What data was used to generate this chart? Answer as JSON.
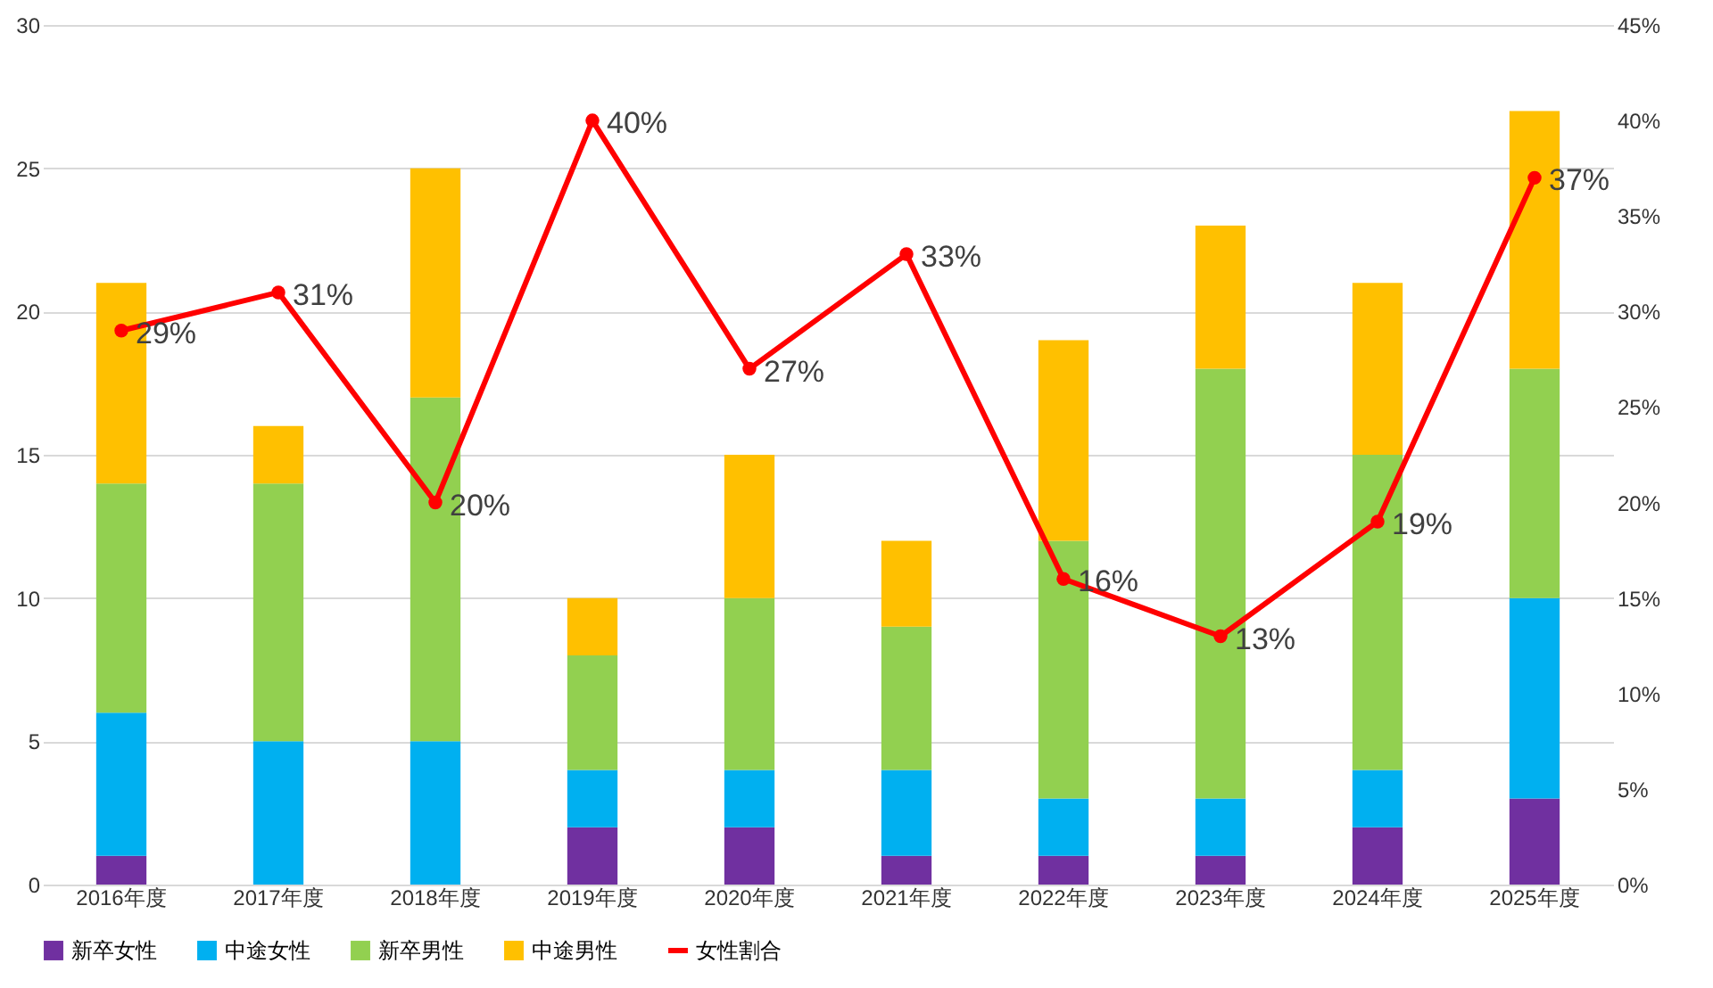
{
  "chart_data": {
    "type": "bar",
    "stacked": true,
    "categories": [
      "2016年度",
      "2017年度",
      "2018年度",
      "2019年度",
      "2020年度",
      "2021年度",
      "2022年度",
      "2023年度",
      "2024年度",
      "2025年度"
    ],
    "series": [
      {
        "name": "新卒女性",
        "color": "#7030a0",
        "values": [
          1,
          0,
          0,
          2,
          2,
          1,
          1,
          1,
          2,
          3
        ]
      },
      {
        "name": "中途女性",
        "color": "#00b0f0",
        "values": [
          5,
          5,
          5,
          2,
          2,
          3,
          2,
          2,
          2,
          7
        ]
      },
      {
        "name": "新卒男性",
        "color": "#92d050",
        "values": [
          8,
          9,
          12,
          4,
          6,
          5,
          9,
          15,
          11,
          8
        ]
      },
      {
        "name": "中途男性",
        "color": "#ffc000",
        "values": [
          7,
          2,
          8,
          2,
          5,
          3,
          7,
          5,
          6,
          9
        ]
      },
      {
        "name": "女性割合",
        "color": "#ff0000",
        "type": "line",
        "axis": "y2",
        "marker": "circle",
        "values": [
          29,
          31,
          20,
          40,
          27,
          33,
          16,
          13,
          19,
          37
        ],
        "value_labels": [
          "29%",
          "31%",
          "20%",
          "40%",
          "27%",
          "33%",
          "16%",
          "13%",
          "19%",
          "37%"
        ]
      }
    ],
    "ylim": [
      0,
      30
    ],
    "yticks": [
      0,
      5,
      10,
      15,
      20,
      25,
      30
    ],
    "y2lim": [
      0,
      45
    ],
    "y2ticks": [
      {
        "value": 0,
        "label": "0%"
      },
      {
        "value": 5,
        "label": "5%"
      },
      {
        "value": 10,
        "label": "10%"
      },
      {
        "value": 15,
        "label": "15%"
      },
      {
        "value": 20,
        "label": "20%"
      },
      {
        "value": 25,
        "label": "25%"
      },
      {
        "value": 30,
        "label": "30%"
      },
      {
        "value": 35,
        "label": "35%"
      },
      {
        "value": 40,
        "label": "40%"
      },
      {
        "value": 45,
        "label": "45%"
      }
    ],
    "grid": "y",
    "legend": "bottom"
  }
}
